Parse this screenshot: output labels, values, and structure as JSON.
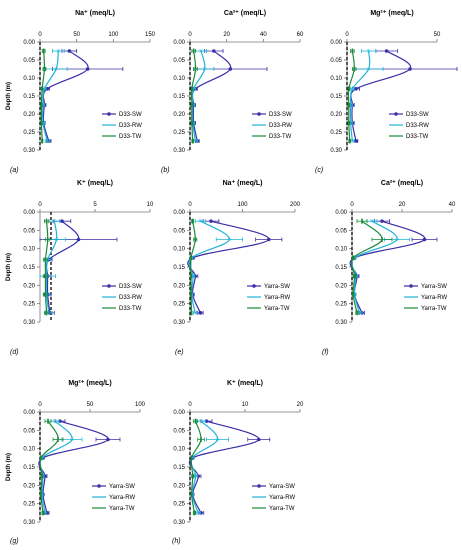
{
  "chart_data": [
    {
      "type": "line",
      "panel_label": "(a)",
      "title": "Na⁺ (meq/L)",
      "ylabel": "Depth (m)",
      "xlim": [
        0,
        150
      ],
      "xticks": [
        "0",
        "50",
        "100",
        "150"
      ],
      "ylim": [
        0,
        0.3
      ],
      "yticks": [
        "0.00",
        "0.05",
        "0.10",
        "0.15",
        "0.20",
        "0.25",
        "0.30"
      ],
      "dashed_ref_x": 0,
      "series": [
        {
          "name": "D33-SW",
          "color": "#3b2fa8",
          "x": [
            40,
            65,
            10,
            6,
            5,
            12
          ],
          "y": [
            0.025,
            0.075,
            0.13,
            0.175,
            0.225,
            0.275
          ],
          "err": [
            10,
            48,
            3,
            2,
            2,
            3
          ]
        },
        {
          "name": "D33-RW",
          "color": "#1fb4d6",
          "x": [
            25,
            22,
            6,
            4,
            4,
            10
          ],
          "y": [
            0.025,
            0.075,
            0.13,
            0.175,
            0.225,
            0.275
          ],
          "err": [
            8,
            15,
            2,
            2,
            2,
            3
          ]
        },
        {
          "name": "D33-TW",
          "color": "#1a8a3a",
          "x": [
            5,
            6,
            3,
            2,
            2,
            3
          ],
          "y": [
            0.025,
            0.075,
            0.13,
            0.175,
            0.225,
            0.275
          ],
          "err": [
            2,
            2,
            1,
            1,
            1,
            1
          ]
        }
      ]
    },
    {
      "type": "line",
      "panel_label": "(b)",
      "title": "Ca²⁺ (meq/L)",
      "ylabel": "",
      "xlim": [
        0,
        60
      ],
      "xticks": [
        "0",
        "20",
        "40",
        "60"
      ],
      "ylim": [
        0,
        0.3
      ],
      "yticks": [
        "0.00",
        "0.05",
        "0.10",
        "0.15",
        "0.20",
        "0.25",
        "0.30"
      ],
      "dashed_ref_x": 0,
      "series": [
        {
          "name": "D33-SW",
          "color": "#3b2fa8",
          "x": [
            13,
            22,
            3,
            2,
            2,
            4
          ],
          "y": [
            0.025,
            0.075,
            0.13,
            0.175,
            0.225,
            0.275
          ],
          "err": [
            5,
            20,
            1,
            1,
            1,
            1
          ]
        },
        {
          "name": "D33-RW",
          "color": "#1fb4d6",
          "x": [
            6,
            8,
            2,
            1.5,
            1.5,
            3
          ],
          "y": [
            0.025,
            0.075,
            0.13,
            0.175,
            0.225,
            0.275
          ],
          "err": [
            3,
            5,
            1,
            1,
            1,
            1
          ]
        },
        {
          "name": "D33-TW",
          "color": "#1a8a3a",
          "x": [
            2,
            3,
            1,
            1,
            1,
            1.5
          ],
          "y": [
            0.025,
            0.075,
            0.13,
            0.175,
            0.225,
            0.275
          ],
          "err": [
            1,
            1,
            0.5,
            0.5,
            0.5,
            0.5
          ]
        }
      ]
    },
    {
      "type": "line",
      "panel_label": "(c)",
      "title": "Mg²⁺ (meq/L)",
      "ylabel": "",
      "xlim": [
        0,
        50
      ],
      "xticks": [
        "0",
        "50"
      ],
      "ylim": [
        0,
        0.3
      ],
      "yticks": [
        "0.00",
        "0.05",
        "0.10",
        "0.15",
        "0.20",
        "0.25",
        "0.30"
      ],
      "dashed_ref_x": 0,
      "series": [
        {
          "name": "D33-SW",
          "color": "#3b2fa8",
          "x": [
            22,
            35,
            5,
            3,
            3,
            5
          ],
          "y": [
            0.025,
            0.075,
            0.13,
            0.175,
            0.225,
            0.275
          ],
          "err": [
            6,
            30,
            2,
            1,
            1,
            1
          ]
        },
        {
          "name": "D33-RW",
          "color": "#1fb4d6",
          "x": [
            12,
            12,
            3,
            2,
            2,
            3
          ],
          "y": [
            0.025,
            0.075,
            0.13,
            0.175,
            0.225,
            0.275
          ],
          "err": [
            4,
            8,
            1,
            1,
            1,
            1
          ]
        },
        {
          "name": "D33-TW",
          "color": "#1a8a3a",
          "x": [
            3,
            4,
            1,
            1,
            1,
            1.5
          ],
          "y": [
            0.025,
            0.075,
            0.13,
            0.175,
            0.225,
            0.275
          ],
          "err": [
            1,
            1,
            0.5,
            0.5,
            0.5,
            0.5
          ]
        }
      ]
    },
    {
      "type": "line",
      "panel_label": "(d)",
      "title": "K⁺ (meq/L)",
      "ylabel": "Depth (m)",
      "xlim": [
        0,
        10
      ],
      "xticks": [
        "0",
        "5",
        "10"
      ],
      "ylim": [
        0,
        0.3
      ],
      "yticks": [
        "0.00",
        "0.05",
        "0.10",
        "0.15",
        "0.20",
        "0.25",
        "0.30"
      ],
      "dashed_ref_x": 1,
      "series": [
        {
          "name": "D33-SW",
          "color": "#3b2fa8",
          "x": [
            2,
            3.5,
            0.8,
            0.7,
            0.7,
            0.9
          ],
          "y": [
            0.025,
            0.075,
            0.13,
            0.175,
            0.225,
            0.275
          ],
          "err": [
            0.8,
            3.5,
            0.3,
            0.3,
            0.3,
            0.4
          ]
        },
        {
          "name": "D33-RW",
          "color": "#1fb4d6",
          "x": [
            1.3,
            1.5,
            0.7,
            0.6,
            0.6,
            0.8
          ],
          "y": [
            0.025,
            0.075,
            0.13,
            0.175,
            0.225,
            0.275
          ],
          "err": [
            0.5,
            0.8,
            0.3,
            0.8,
            0.3,
            0.3
          ]
        },
        {
          "name": "D33-TW",
          "color": "#1a8a3a",
          "x": [
            0.6,
            0.7,
            0.5,
            0.5,
            0.5,
            0.6
          ],
          "y": [
            0.025,
            0.075,
            0.13,
            0.175,
            0.225,
            0.275
          ],
          "err": [
            0.2,
            0.2,
            0.2,
            0.2,
            0.2,
            0.2
          ]
        }
      ]
    },
    {
      "type": "line",
      "panel_label": "(e)",
      "title": "Na⁺ (meq/L)",
      "ylabel": "",
      "xlim": [
        0,
        200
      ],
      "xticks": [
        "0",
        "100",
        "200"
      ],
      "ylim": [
        0,
        0.3
      ],
      "yticks": [
        "0.00",
        "0.05",
        "0.10",
        "0.15",
        "0.20",
        "0.25",
        "0.30"
      ],
      "dashed_ref_x": 0,
      "series": [
        {
          "name": "Yarra-SW",
          "color": "#3b2fa8",
          "x": [
            40,
            150,
            5,
            10,
            5,
            20
          ],
          "y": [
            0.025,
            0.075,
            0.125,
            0.175,
            0.225,
            0.275
          ],
          "err": [
            15,
            25,
            3,
            5,
            3,
            5
          ]
        },
        {
          "name": "Yarra-RW",
          "color": "#1fb4d6",
          "x": [
            20,
            75,
            3,
            6,
            3,
            10
          ],
          "y": [
            0.025,
            0.075,
            0.125,
            0.175,
            0.225,
            0.275
          ],
          "err": [
            10,
            25,
            2,
            3,
            2,
            3
          ]
        },
        {
          "name": "Yarra-TW",
          "color": "#1a8a3a",
          "x": [
            5,
            10,
            2,
            2,
            2,
            3
          ],
          "y": [
            0.025,
            0.075,
            0.125,
            0.175,
            0.225,
            0.275
          ],
          "err": [
            2,
            3,
            1,
            1,
            1,
            1
          ]
        }
      ]
    },
    {
      "type": "line",
      "panel_label": "(f)",
      "title": "Ca²⁺ (meq/L)",
      "ylabel": "",
      "xlim": [
        0,
        40
      ],
      "xticks": [
        "0",
        "20",
        "40"
      ],
      "ylim": [
        0,
        0.3
      ],
      "yticks": [
        "0.00",
        "0.05",
        "0.10",
        "0.15",
        "0.20",
        "0.25",
        "0.30"
      ],
      "dashed_ref_x": 0,
      "series": [
        {
          "name": "Yarra-SW",
          "color": "#3b2fa8",
          "x": [
            12,
            29,
            1,
            2,
            1,
            4
          ],
          "y": [
            0.025,
            0.075,
            0.125,
            0.175,
            0.225,
            0.275
          ],
          "err": [
            3,
            5,
            0.5,
            0.8,
            0.5,
            1
          ]
        },
        {
          "name": "Yarra-RW",
          "color": "#1fb4d6",
          "x": [
            8,
            18,
            1,
            1.5,
            1,
            3
          ],
          "y": [
            0.025,
            0.075,
            0.125,
            0.175,
            0.225,
            0.275
          ],
          "err": [
            2,
            5,
            0.5,
            0.8,
            0.5,
            1
          ]
        },
        {
          "name": "Yarra-TW",
          "color": "#1a8a3a",
          "x": [
            4,
            12,
            0.5,
            1,
            0.5,
            2
          ],
          "y": [
            0.025,
            0.075,
            0.125,
            0.175,
            0.225,
            0.275
          ],
          "err": [
            2,
            4,
            0.3,
            0.5,
            0.3,
            0.5
          ]
        }
      ]
    },
    {
      "type": "line",
      "panel_label": "(g)",
      "title": "Mg²⁺ (meq/L)",
      "ylabel": "Depth (m)",
      "xlim": [
        0,
        100
      ],
      "xticks": [
        "0",
        "50",
        "100"
      ],
      "ylim": [
        0,
        0.3
      ],
      "yticks": [
        "0.00",
        "0.05",
        "0.10",
        "0.15",
        "0.20",
        "0.25",
        "0.30"
      ],
      "dashed_ref_x": 0,
      "series": [
        {
          "name": "Yarra-SW",
          "color": "#3b2fa8",
          "x": [
            20,
            68,
            3,
            5,
            3,
            7
          ],
          "y": [
            0.025,
            0.075,
            0.125,
            0.175,
            0.225,
            0.275
          ],
          "err": [
            5,
            12,
            1,
            2,
            1,
            2
          ]
        },
        {
          "name": "Yarra-RW",
          "color": "#1fb4d6",
          "x": [
            15,
            32,
            2,
            3,
            2,
            5
          ],
          "y": [
            0.025,
            0.075,
            0.125,
            0.175,
            0.225,
            0.275
          ],
          "err": [
            4,
            10,
            1,
            1,
            1,
            1
          ]
        },
        {
          "name": "Yarra-TW",
          "color": "#1a8a3a",
          "x": [
            8,
            18,
            1,
            2,
            1,
            3
          ],
          "y": [
            0.025,
            0.075,
            0.125,
            0.175,
            0.225,
            0.275
          ],
          "err": [
            3,
            5,
            0.5,
            1,
            0.5,
            1
          ]
        }
      ]
    },
    {
      "type": "line",
      "panel_label": "(h)",
      "title": "K⁺ (meq/L)",
      "ylabel": "",
      "xlim": [
        0,
        20
      ],
      "xticks": [
        "0",
        "10",
        "20"
      ],
      "ylim": [
        0,
        0.3
      ],
      "yticks": [
        "0.00",
        "0.05",
        "0.10",
        "0.15",
        "0.20",
        "0.25",
        "0.30"
      ],
      "dashed_ref_x": 0,
      "series": [
        {
          "name": "Yarra-SW",
          "color": "#3b2fa8",
          "x": [
            3,
            12.5,
            0.5,
            1.5,
            0.5,
            2
          ],
          "y": [
            0.025,
            0.075,
            0.125,
            0.175,
            0.225,
            0.275
          ],
          "err": [
            1,
            2,
            0.2,
            0.5,
            0.2,
            0.5
          ]
        },
        {
          "name": "Yarra-RW",
          "color": "#1fb4d6",
          "x": [
            2,
            5,
            0.4,
            1,
            0.4,
            1.5
          ],
          "y": [
            0.025,
            0.075,
            0.125,
            0.175,
            0.225,
            0.275
          ],
          "err": [
            0.8,
            2,
            0.2,
            0.4,
            0.2,
            0.4
          ]
        },
        {
          "name": "Yarra-TW",
          "color": "#1a8a3a",
          "x": [
            1,
            2,
            0.3,
            0.5,
            0.3,
            0.8
          ],
          "y": [
            0.025,
            0.075,
            0.125,
            0.175,
            0.225,
            0.275
          ],
          "err": [
            0.4,
            0.6,
            0.1,
            0.2,
            0.1,
            0.2
          ]
        }
      ]
    }
  ]
}
